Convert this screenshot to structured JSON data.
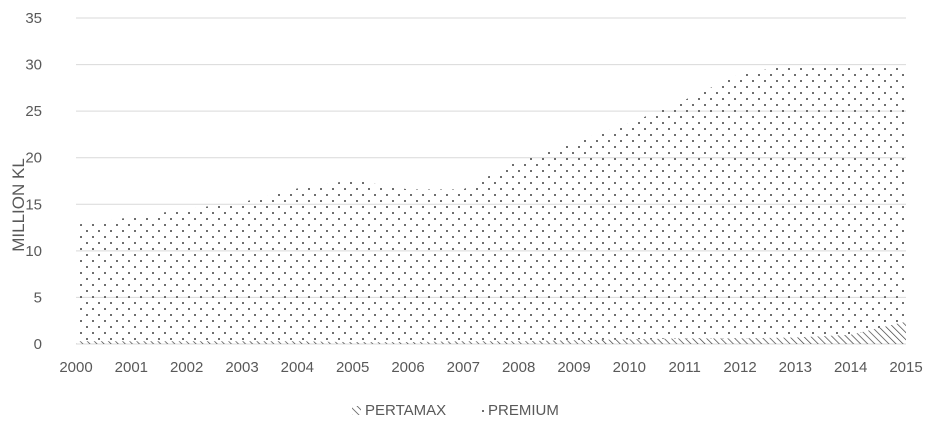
{
  "chart_data": {
    "type": "area",
    "stacked": true,
    "x": [
      "2000",
      "2001",
      "2002",
      "2003",
      "2004",
      "2005",
      "2006",
      "2007",
      "2008",
      "2009",
      "2010",
      "2011",
      "2012",
      "2013",
      "2014",
      "2015"
    ],
    "series": [
      {
        "name": "PERTAMAX",
        "pattern": "diagonal-hatch",
        "values": [
          0.3,
          0.3,
          0.3,
          0.3,
          0.3,
          0.2,
          0.2,
          0.3,
          0.3,
          0.4,
          0.5,
          0.6,
          0.6,
          0.7,
          1.0,
          2.4
        ]
      },
      {
        "name": "PREMIUM",
        "pattern": "dots",
        "values": [
          12.5,
          13.3,
          14.2,
          14.9,
          16.4,
          17.4,
          16.4,
          16.3,
          19.4,
          21.3,
          23.2,
          25.6,
          28.4,
          29.3,
          28.9,
          27.6
        ]
      }
    ],
    "ylabel": "MILLION KL",
    "xlabel": "",
    "ylim": [
      0,
      35
    ],
    "yticks": [
      "0",
      "5",
      "10",
      "15",
      "20",
      "25",
      "30",
      "35"
    ],
    "grid": "horizontal",
    "legend_position": "bottom"
  },
  "colors": {
    "grid": "#d9d9d9",
    "pattern": "#404040",
    "text": "#595959"
  }
}
